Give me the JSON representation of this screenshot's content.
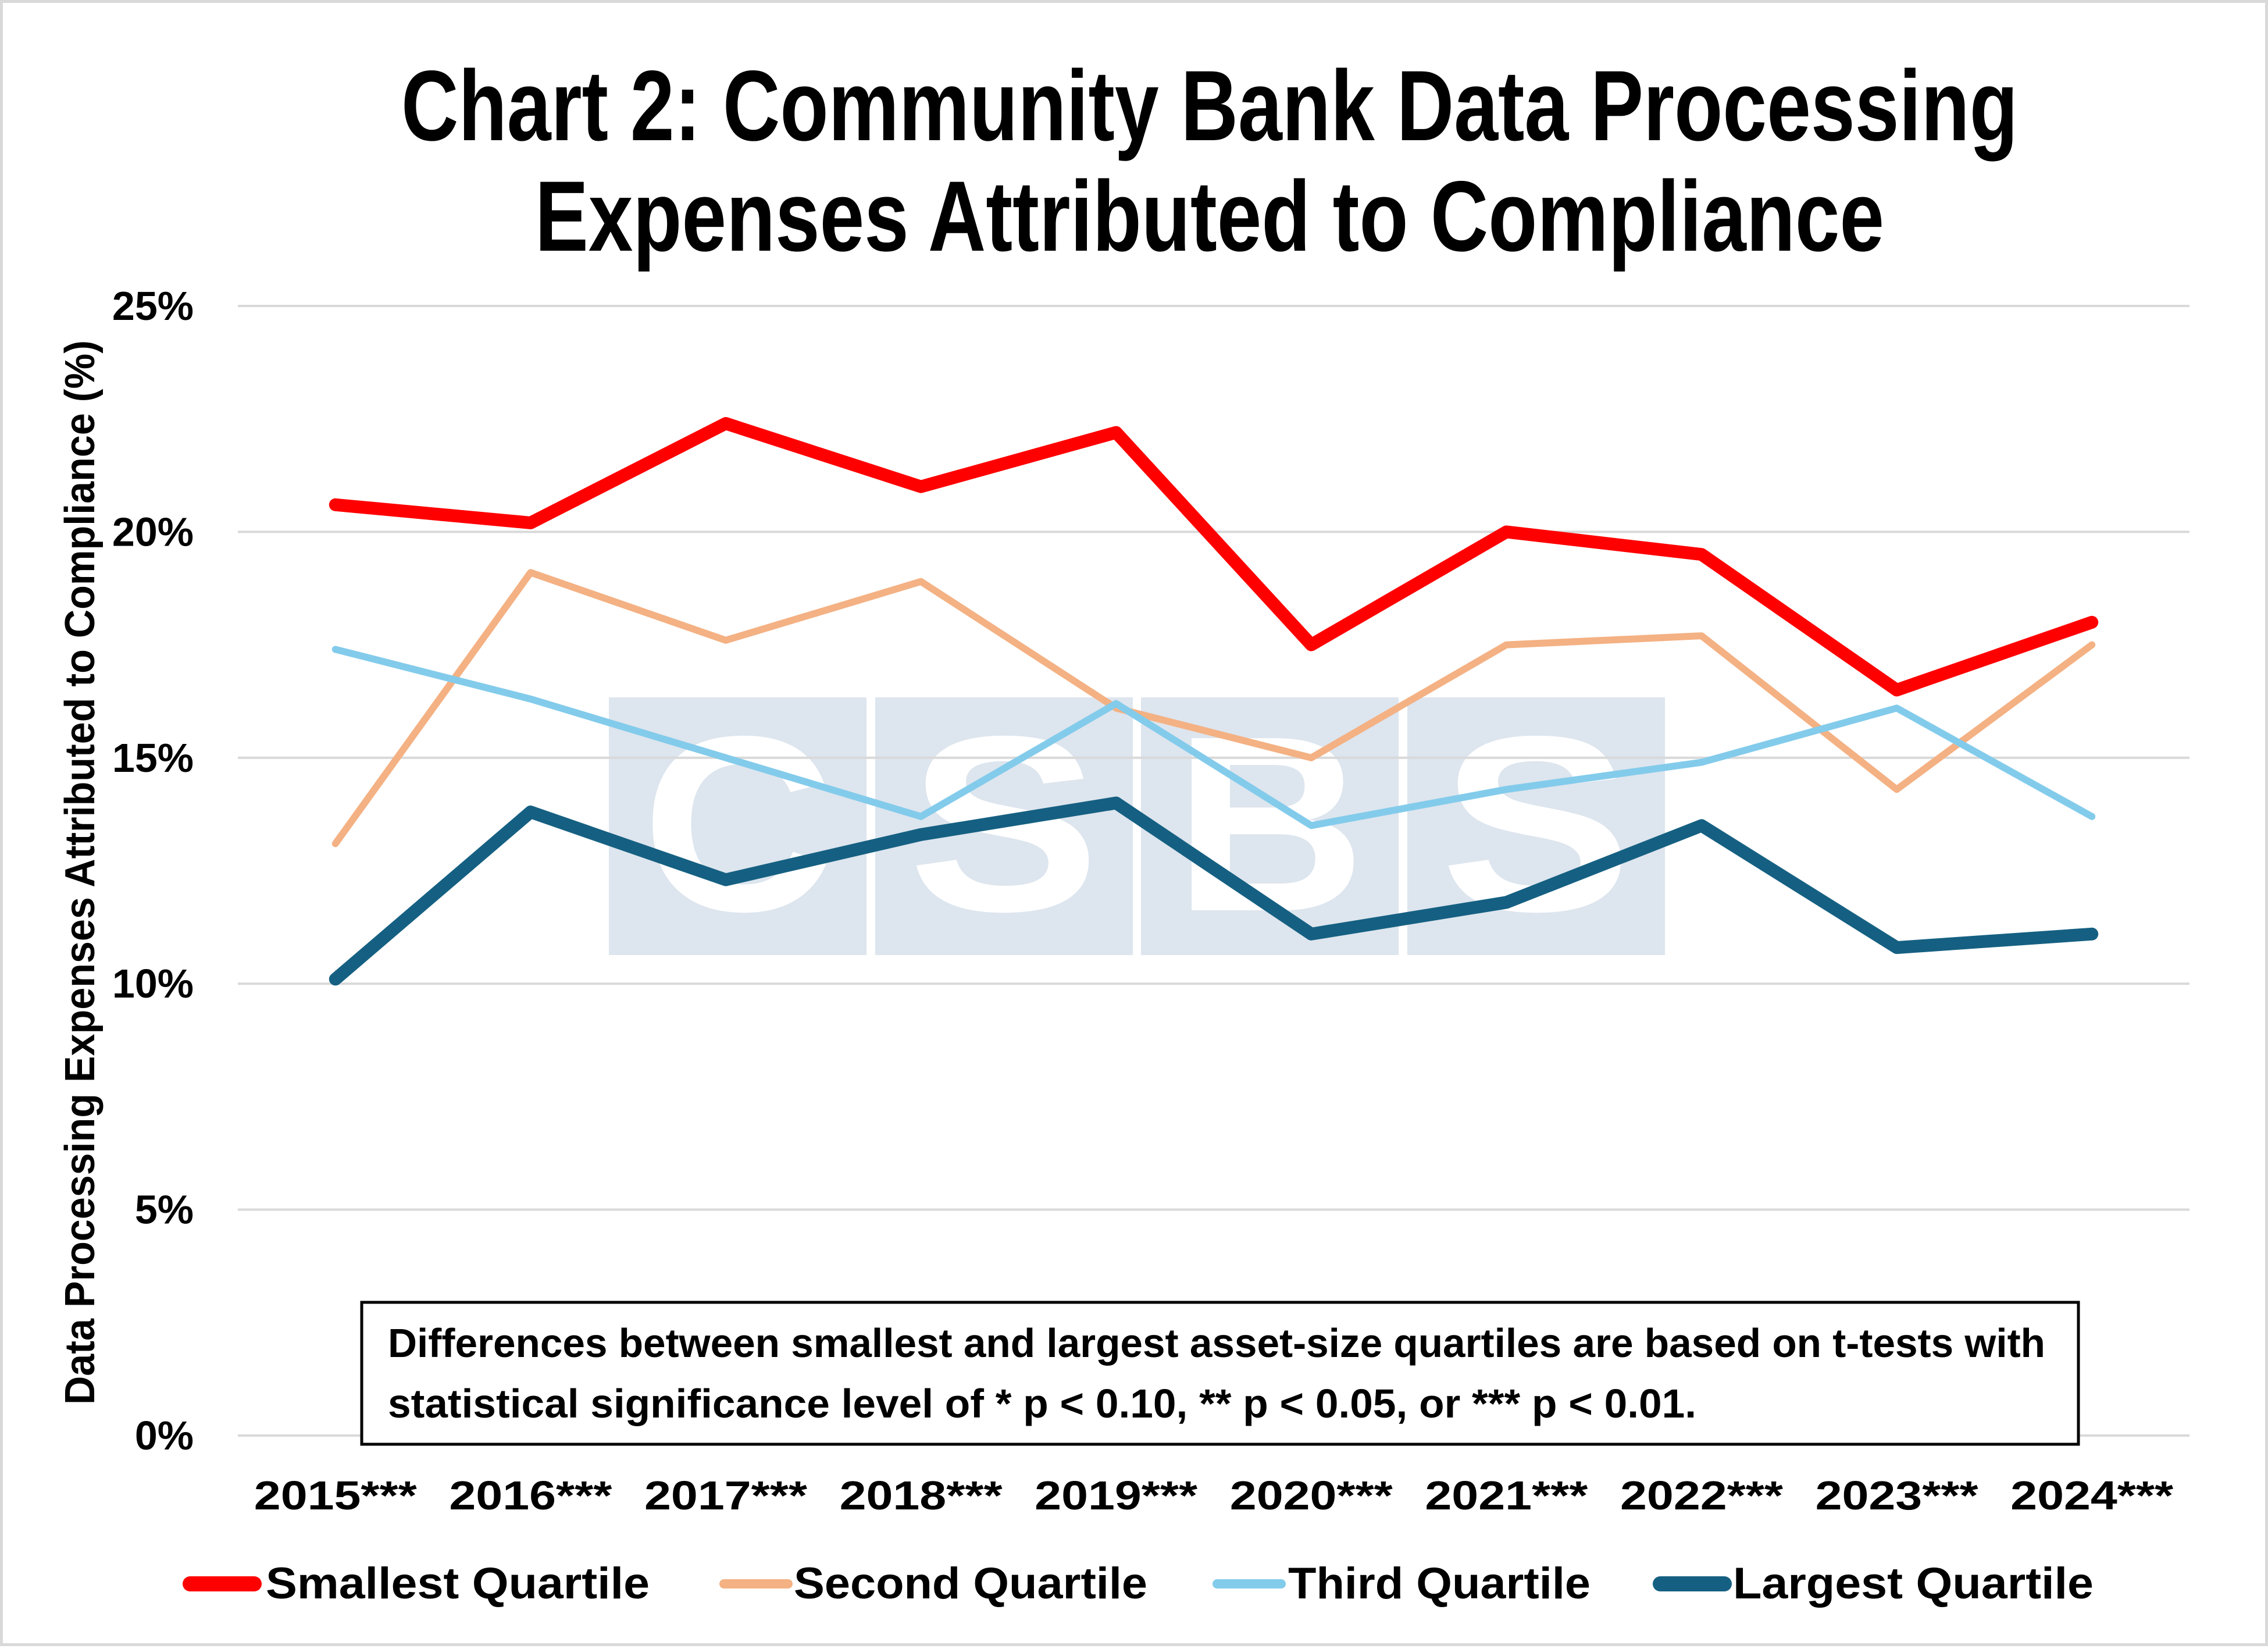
{
  "chart_data": {
    "type": "line",
    "title": "Chart 2: Community Bank Data Processing Expenses Attributed to Compliance",
    "title_lines": [
      "Chart 2: Community Bank Data Processing",
      "Expenses Attributed to Compliance"
    ],
    "xlabel": "",
    "ylabel": "Data Processing Expenses Attributed to Compliance (%)",
    "ylim": [
      0,
      25
    ],
    "yticks": [
      0,
      5,
      10,
      15,
      20,
      25
    ],
    "ytick_labels": [
      "0%",
      "5%",
      "10%",
      "15%",
      "20%",
      "25%"
    ],
    "grid": true,
    "categories": [
      "2015***",
      "2016***",
      "2017***",
      "2018***",
      "2019***",
      "2020***",
      "2021***",
      "2022***",
      "2023***",
      "2024***"
    ],
    "series": [
      {
        "name": "Smallest Quartile",
        "color": "#ff0000",
        "values": [
          20.6,
          20.2,
          22.4,
          21.0,
          22.2,
          17.5,
          20.0,
          19.5,
          16.5,
          18.0
        ]
      },
      {
        "name": "Second Quartile",
        "color": "#f4b183",
        "values": [
          13.1,
          19.1,
          17.6,
          18.9,
          16.1,
          15.0,
          17.5,
          17.7,
          14.3,
          17.5
        ]
      },
      {
        "name": "Third Quartile",
        "color": "#83cbeb",
        "values": [
          17.4,
          16.3,
          15.0,
          13.7,
          16.2,
          13.5,
          14.3,
          14.9,
          16.1,
          13.7
        ]
      },
      {
        "name": "Largest Quartile",
        "color": "#156082",
        "values": [
          10.1,
          13.8,
          12.3,
          13.3,
          14.0,
          11.1,
          11.8,
          13.5,
          10.8,
          11.1
        ]
      }
    ],
    "legend_position": "bottom",
    "annotation": {
      "lines": [
        "Differences between smallest and largest asset-size quartiles are based on t-tests with",
        "statistical significance level of * p < 0.10, ** p < 0.05, or *** p < 0.01."
      ]
    },
    "watermark": {
      "letters": [
        "C",
        "S",
        "B",
        "S"
      ],
      "color": "#dde5ee"
    }
  }
}
